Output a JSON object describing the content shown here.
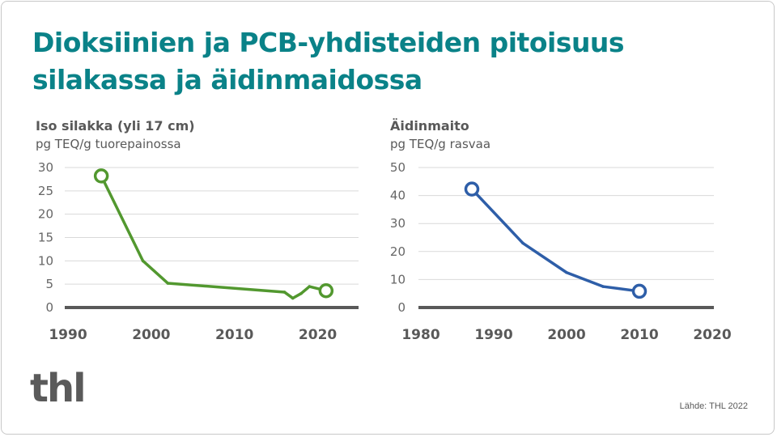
{
  "title": "Dioksiinien ja PCB-yhdisteiden pitoisuus silakassa ja äidinmaidossa",
  "logo_text": "thl",
  "source": "Lähde: THL 2022",
  "chart_data": [
    {
      "type": "line",
      "title": "Iso silakka (yli 17 cm)",
      "ylabel": "pg TEQ/g tuorepainossa",
      "color": "#52982f",
      "xlim": [
        1990,
        2025
      ],
      "ylim": [
        0,
        30
      ],
      "xticks": [
        1990,
        2000,
        2010,
        2020
      ],
      "yticks": [
        0,
        5,
        10,
        15,
        20,
        25,
        30
      ],
      "grid": true,
      "x": [
        1994,
        1999,
        2002,
        2016,
        2017,
        2018,
        2019,
        2021
      ],
      "y": [
        28.2,
        10,
        5.2,
        3.3,
        2.0,
        3.0,
        4.5,
        3.6
      ],
      "markers": "first-and-last (hollow circles)"
    },
    {
      "type": "line",
      "title": "Äidinmaito",
      "ylabel": "pg TEQ/g rasvaa",
      "color": "#2e5ea8",
      "xlim": [
        1980,
        2020
      ],
      "ylim": [
        0,
        50
      ],
      "xticks": [
        1980,
        1990,
        2000,
        2010,
        2020
      ],
      "yticks": [
        0,
        10,
        20,
        30,
        40,
        50
      ],
      "grid": true,
      "x": [
        1987,
        1994,
        2000,
        2005,
        2010
      ],
      "y": [
        42.3,
        23,
        12.5,
        7.5,
        5.8
      ],
      "markers": "first-and-last (hollow circles)"
    }
  ]
}
